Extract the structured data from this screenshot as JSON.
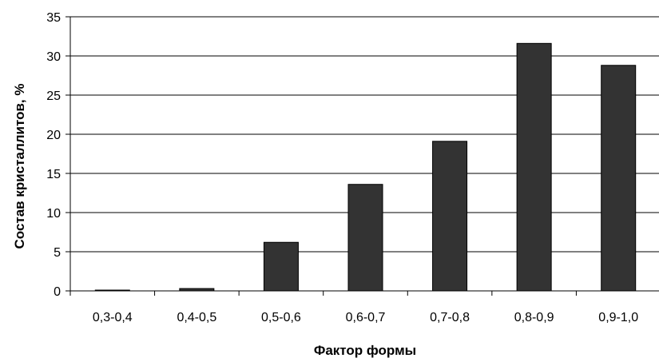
{
  "chart_data": {
    "type": "bar",
    "title": "",
    "xlabel": "Фактор формы",
    "ylabel": "Состав кристаллитов, %",
    "categories": [
      "0,3-0,4",
      "0,4-0,5",
      "0,5-0,6",
      "0,6-0,7",
      "0,7-0,8",
      "0,8-0,9",
      "0,9-1,0"
    ],
    "values": [
      0.1,
      0.3,
      6.2,
      13.6,
      19.1,
      31.6,
      28.8
    ],
    "ylim": [
      0,
      35
    ],
    "yticks": [
      0,
      5,
      10,
      15,
      20,
      25,
      30,
      35
    ],
    "grid": "horizontal",
    "legend": "none",
    "bar_color": "#333333",
    "gridline_color": "#000000"
  }
}
